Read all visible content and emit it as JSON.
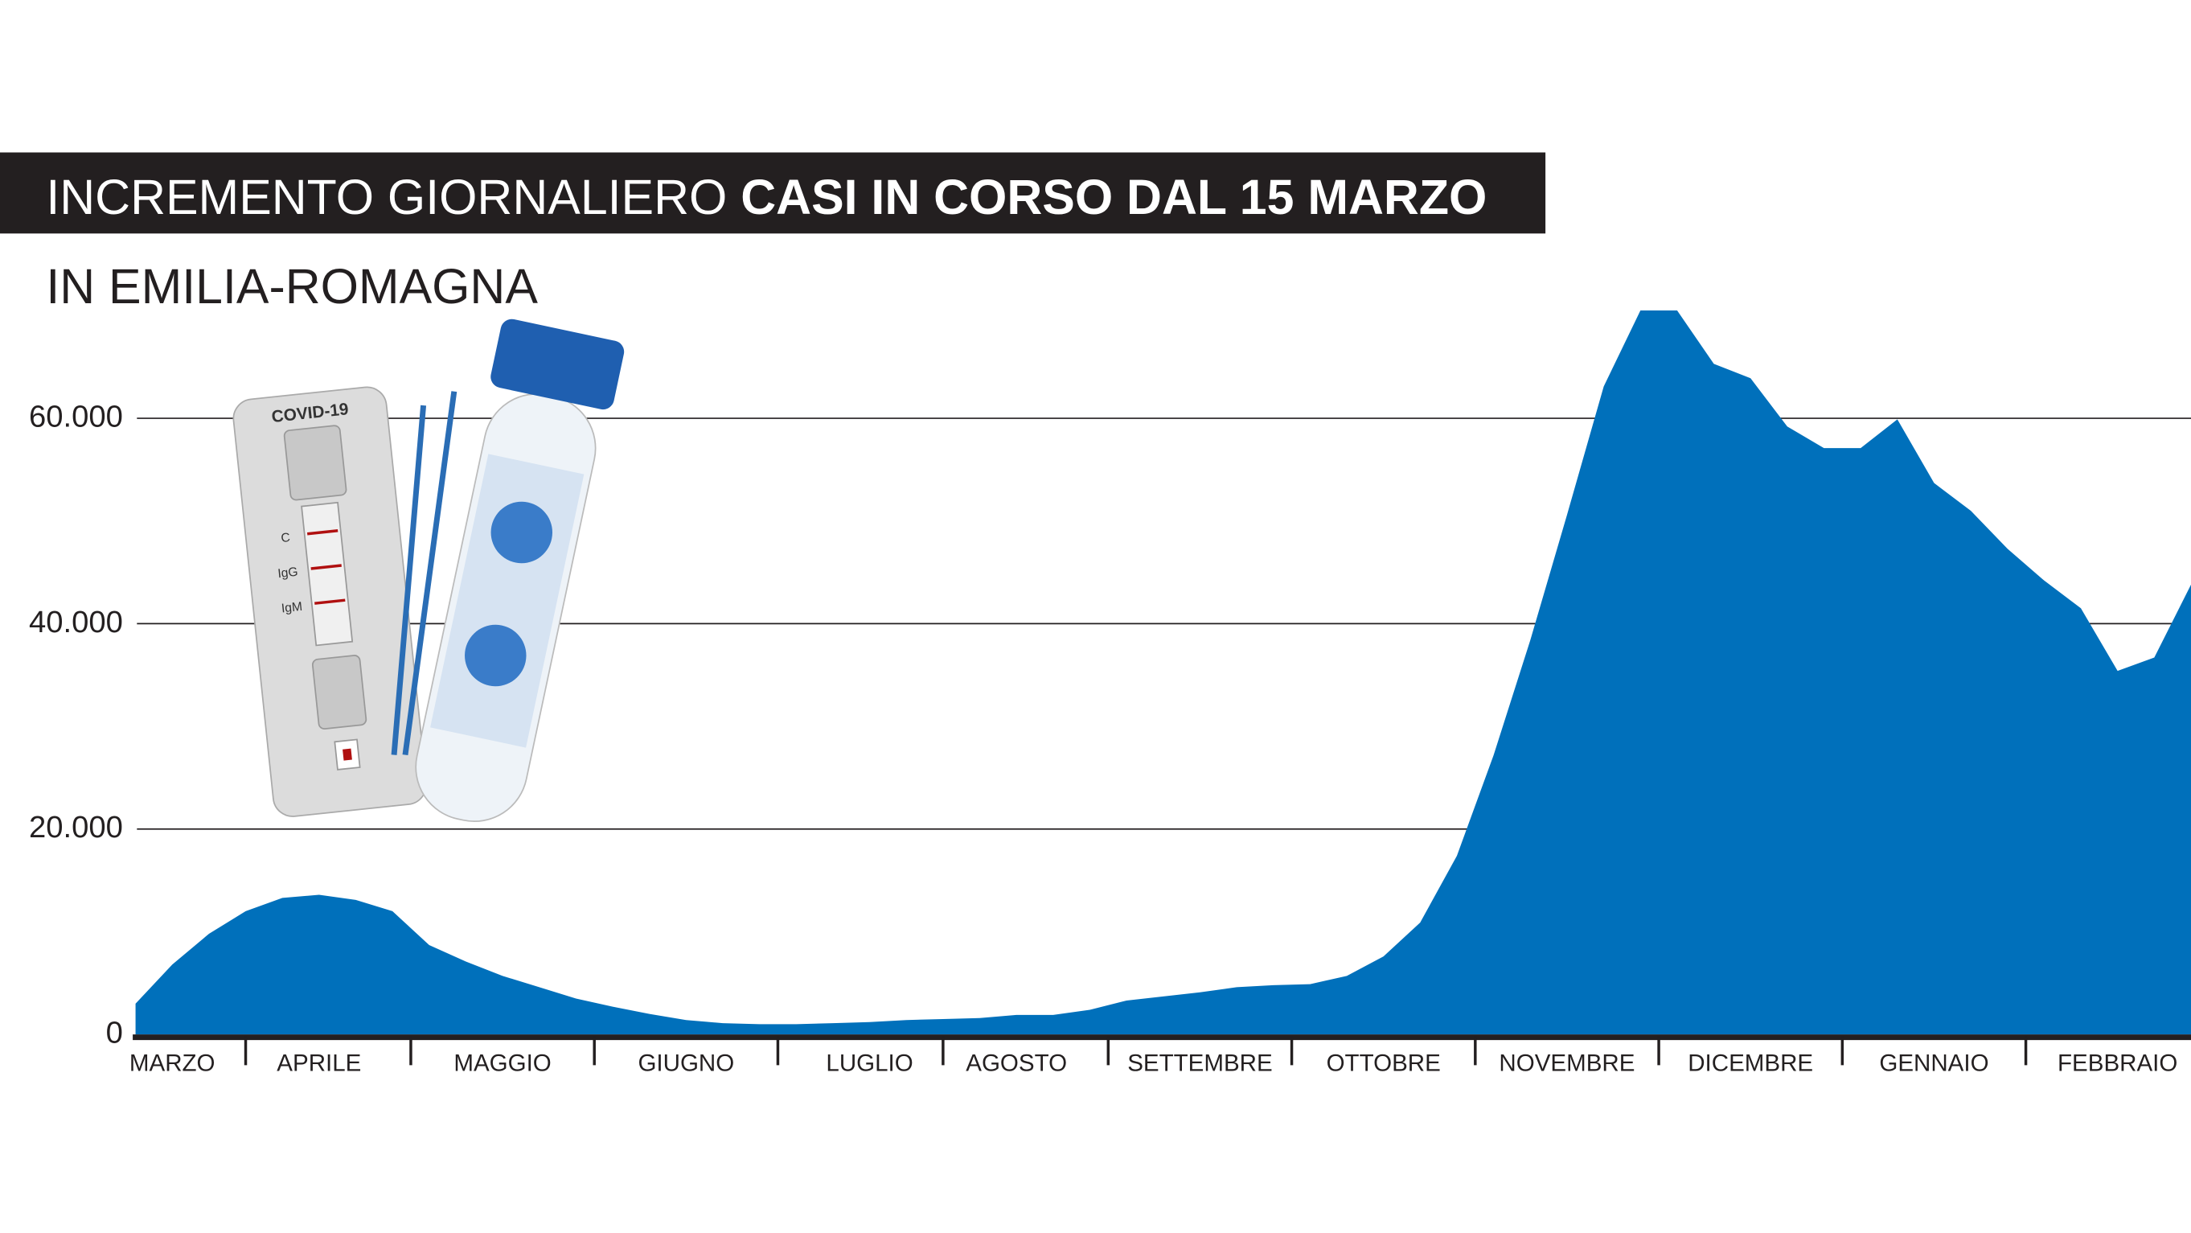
{
  "chart_data": {
    "type": "area",
    "title": [
      "INCREMENTO GIORNALIERO",
      "CASI IN CORSO DAL 15 MARZO"
    ],
    "subtitle": "IN EMILIA-ROMAGNA",
    "annotations": [
      "COVID-19",
      "C",
      "IgG",
      "IgM"
    ],
    "color": "#0070bb",
    "grid": true,
    "ylim": [
      0,
      75000
    ],
    "yticks": [
      0,
      {
        "value": 20000,
        "label": "20.000"
      },
      {
        "value": 40000,
        "label": "40.000"
      },
      {
        "value": 60000,
        "label": "60.000"
      }
    ],
    "categories": [
      null,
      "MARZO",
      null,
      null,
      null,
      "APRILE",
      null,
      null,
      null,
      null,
      "MAGGIO",
      null,
      null,
      null,
      null,
      "GIUGNO",
      null,
      null,
      null,
      null,
      "LUGLIO",
      null,
      null,
      null,
      "AGOSTO",
      null,
      null,
      null,
      null,
      "SETTEMBRE",
      null,
      null,
      null,
      null,
      "OTTOBRE",
      null,
      null,
      null,
      null,
      "NOVEMBRE",
      null,
      null,
      null,
      null,
      "DICEMBRE",
      null,
      null,
      null,
      null,
      "GENNAIO",
      null,
      null,
      null,
      null,
      "FEBBRAIO",
      null,
      null
    ],
    "values": [
      3000,
      6800,
      9800,
      12000,
      13300,
      13600,
      13100,
      12000,
      8700,
      7100,
      5700,
      4600,
      3500,
      2700,
      2000,
      1400,
      1100,
      1000,
      1000,
      1100,
      1200,
      1400,
      1500,
      1600,
      1900,
      1900,
      2400,
      3300,
      3700,
      4100,
      4600,
      4800,
      4900,
      5700,
      7600,
      10900,
      17400,
      27200,
      38400,
      50600,
      63100,
      70500,
      70500,
      65300,
      63900,
      59200,
      57100,
      57100,
      59900,
      53700,
      51000,
      47300,
      44200,
      41500,
      35400,
      36700,
      43800
    ]
  }
}
